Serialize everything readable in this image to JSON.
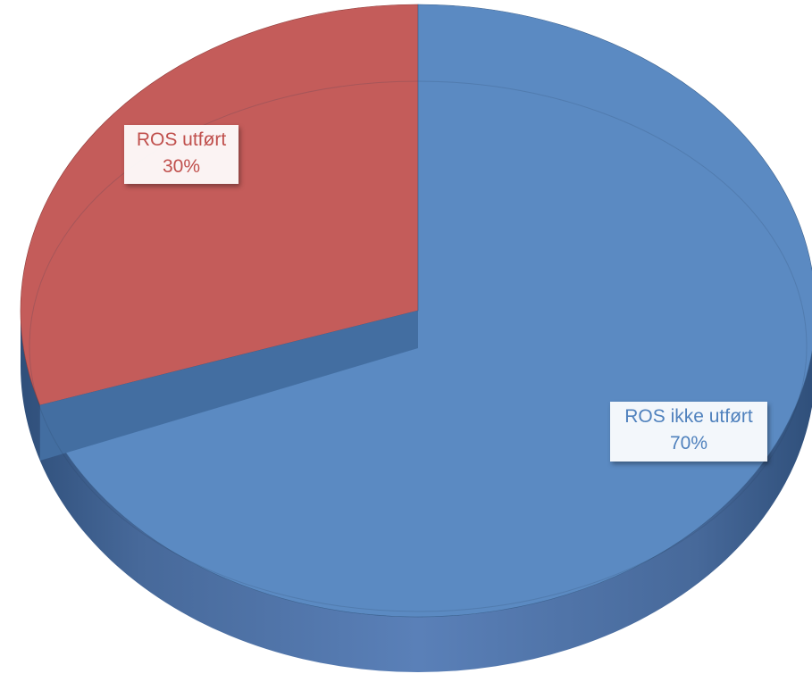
{
  "chart_data": {
    "type": "pie",
    "style": "3d",
    "title": "",
    "slices": [
      {
        "label": "ROS utført",
        "value": 30,
        "value_label": "30%",
        "color": "#c0504d"
      },
      {
        "label": "ROS ikke utført",
        "value": 70,
        "value_label": "70%",
        "color": "#4f81bd"
      }
    ],
    "legend": "none",
    "data_labels": "category-and-percent"
  }
}
